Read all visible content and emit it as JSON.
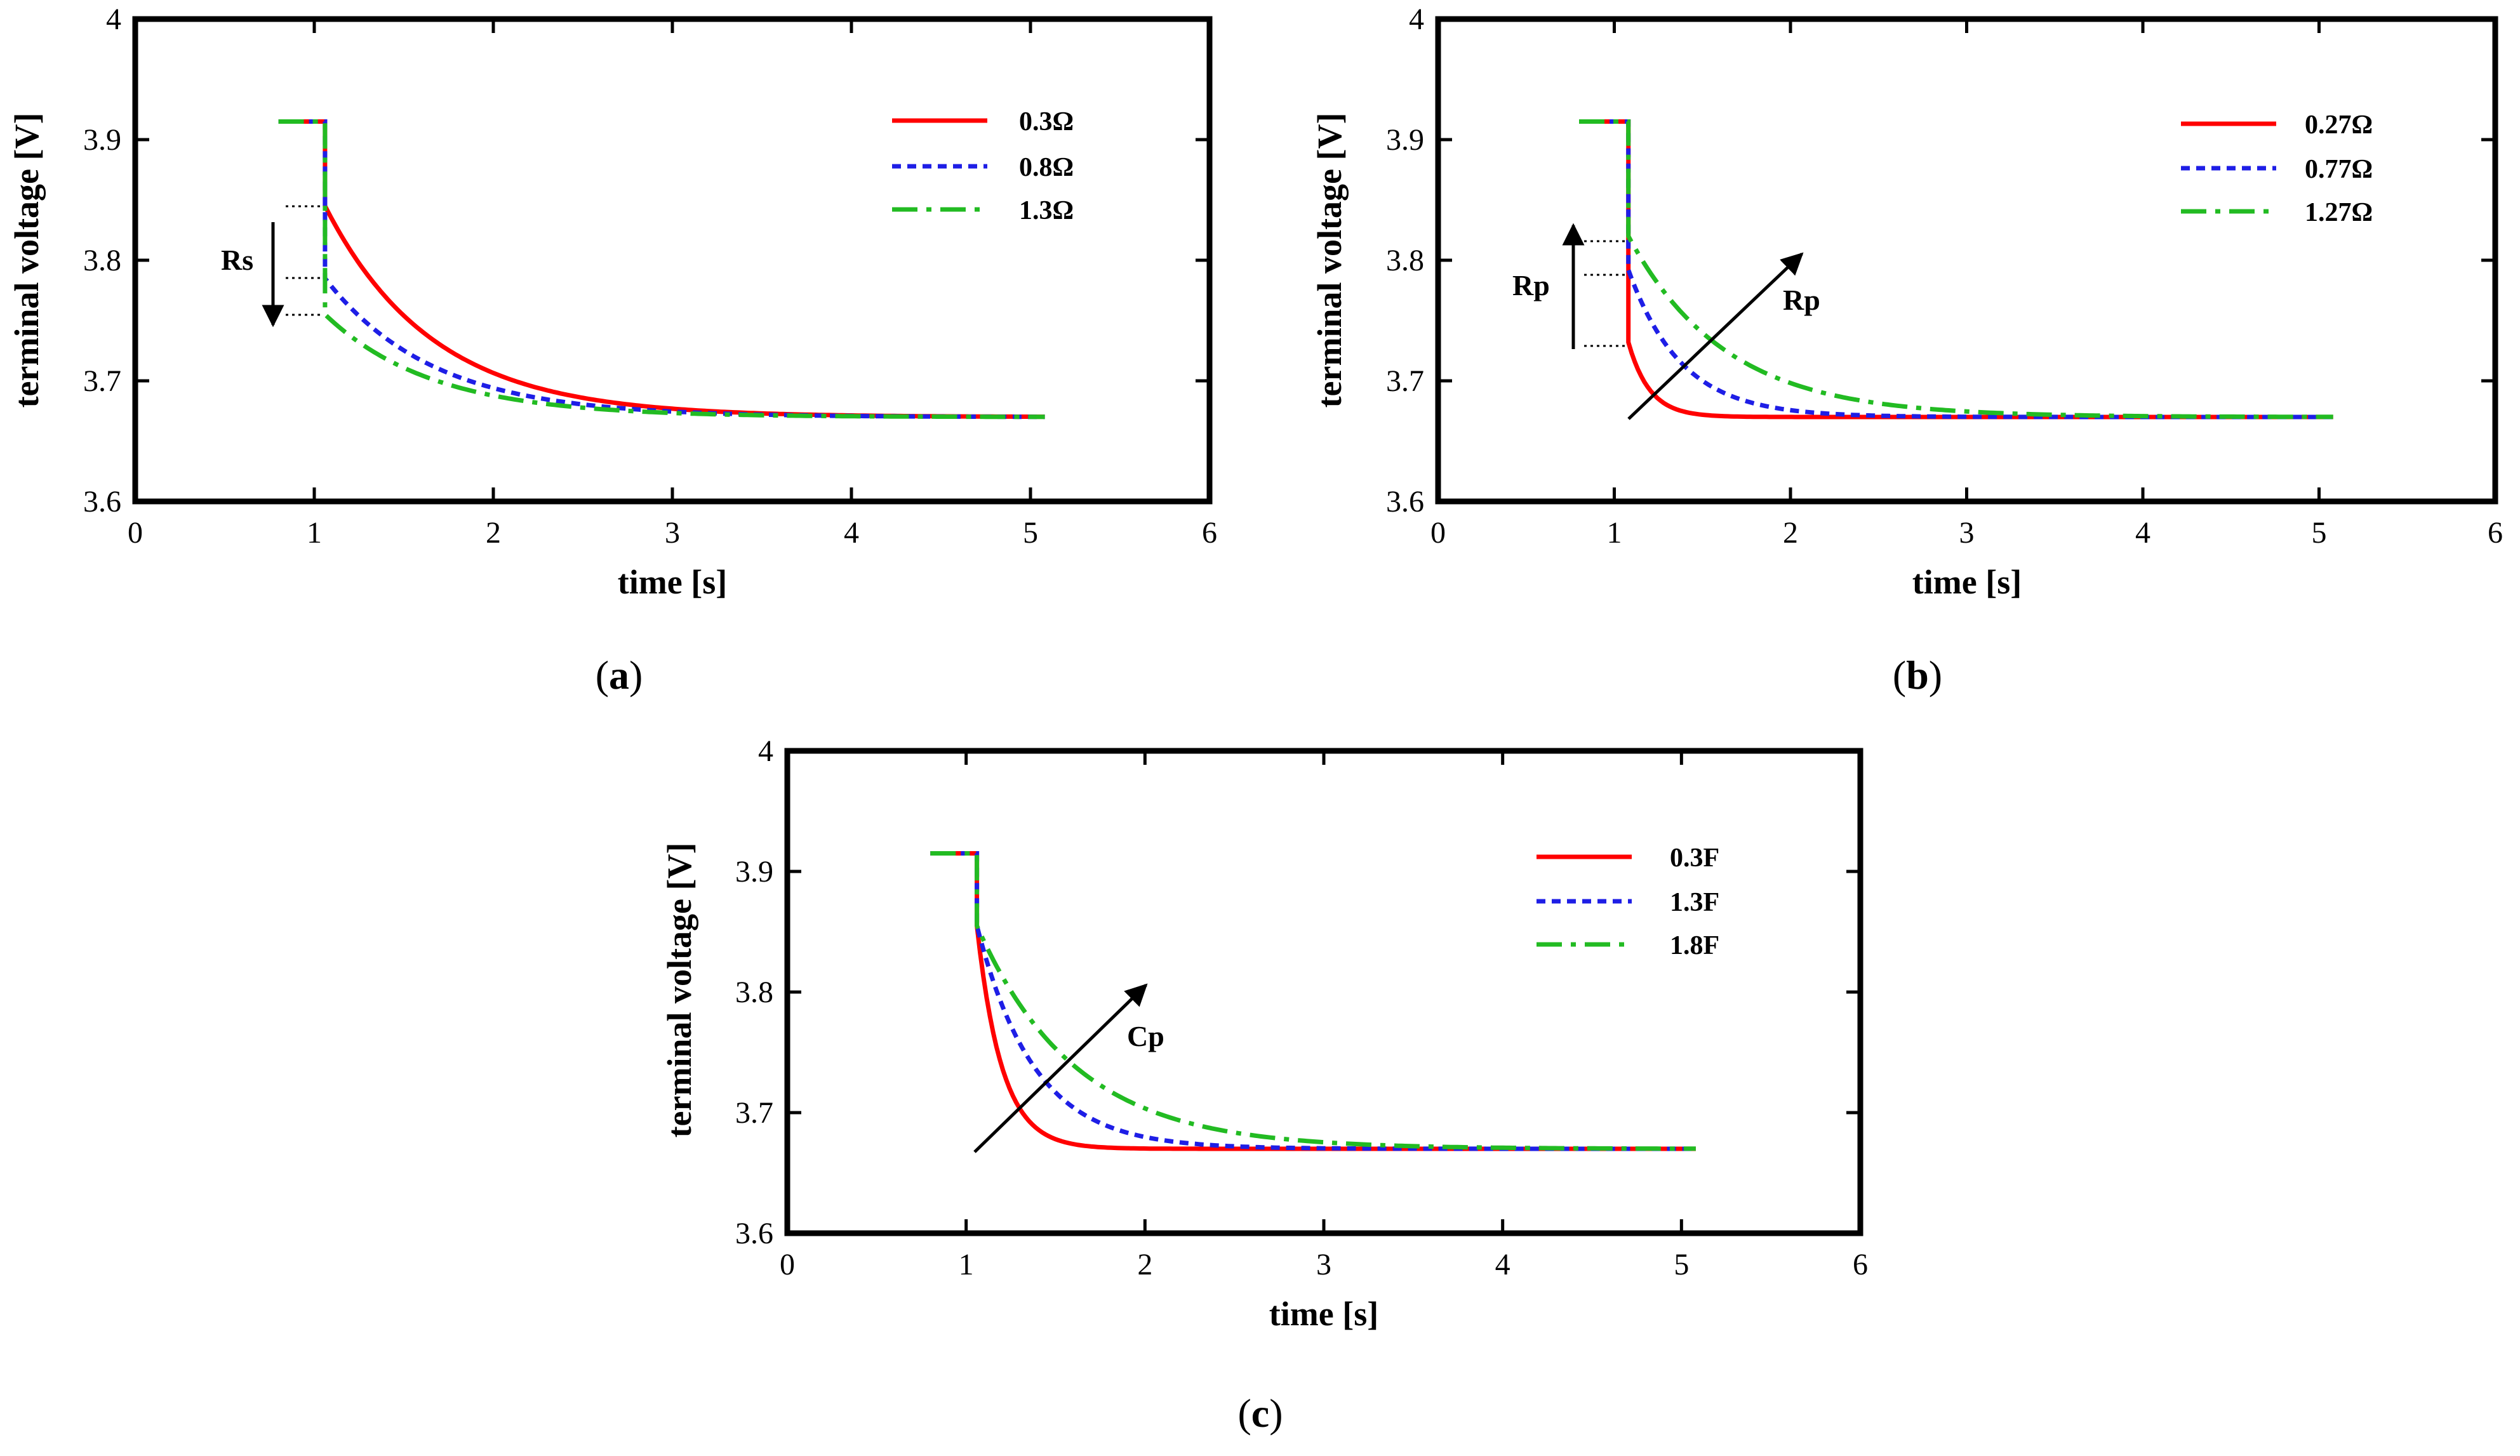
{
  "chart_data": [
    {
      "type": "line",
      "panel": "a",
      "caption_letter": "a",
      "xlabel": "time [s]",
      "ylabel": "terminal voltage [V]",
      "xlim": [
        0,
        6
      ],
      "ylim": [
        3.6,
        4.0
      ],
      "xticks": [
        "0",
        "1",
        "2",
        "3",
        "4",
        "5",
        "6"
      ],
      "yticks": [
        "3.6",
        "3.7",
        "3.8",
        "3.9",
        "4"
      ],
      "grid": false,
      "legend_position": "top-right",
      "annotations": [
        {
          "text": "Rs",
          "kind": "vertical-arrow-down"
        }
      ],
      "model": {
        "v0": 3.915,
        "vinf": 3.67,
        "t_step": 1.06,
        "t_start": 0.8,
        "t_end": 5.08
      },
      "series": [
        {
          "name": "0.3Ω",
          "style": "solid",
          "color": "#ff0000",
          "jump_to": 3.845,
          "tau": 0.6
        },
        {
          "name": "0.8Ω",
          "style": "dotted",
          "color": "#1e1ee6",
          "jump_to": 3.785,
          "tau": 0.6
        },
        {
          "name": "1.3Ω",
          "style": "dashdot",
          "color": "#22bb22",
          "jump_to": 3.755,
          "tau": 0.6
        }
      ]
    },
    {
      "type": "line",
      "panel": "b",
      "caption_letter": "b",
      "xlabel": "time [s]",
      "ylabel": "terminal voltage [V]",
      "xlim": [
        0,
        6
      ],
      "ylim": [
        3.6,
        4.0
      ],
      "xticks": [
        "0",
        "1",
        "2",
        "3",
        "4",
        "5",
        "6"
      ],
      "yticks": [
        "3.6",
        "3.7",
        "3.8",
        "3.9",
        "4"
      ],
      "grid": false,
      "legend_position": "top-right",
      "annotations": [
        {
          "text": "Rp",
          "kind": "vertical-arrow-up"
        },
        {
          "text": "Rp",
          "kind": "diagonal-arrow"
        }
      ],
      "model": {
        "v0": 3.915,
        "vinf": 3.67,
        "t_step": 1.08,
        "t_start": 0.8,
        "t_end": 5.08
      },
      "series": [
        {
          "name": "0.27Ω",
          "style": "solid",
          "color": "#ff0000",
          "jump_to": 3.732,
          "tau": 0.12
        },
        {
          "name": "0.77Ω",
          "style": "dotted",
          "color": "#1e1ee6",
          "jump_to": 3.792,
          "tau": 0.3
        },
        {
          "name": "1.27Ω",
          "style": "dashdot",
          "color": "#22bb22",
          "jump_to": 3.82,
          "tau": 0.55
        }
      ]
    },
    {
      "type": "line",
      "panel": "c",
      "caption_letter": "c",
      "xlabel": "time [s]",
      "ylabel": "terminal voltage [V]",
      "xlim": [
        0,
        6
      ],
      "ylim": [
        3.6,
        4.0
      ],
      "xticks": [
        "0",
        "1",
        "2",
        "3",
        "4",
        "5",
        "6"
      ],
      "yticks": [
        "3.6",
        "3.7",
        "3.8",
        "3.9",
        "4"
      ],
      "grid": false,
      "legend_position": "top-right",
      "annotations": [
        {
          "text": "Cp",
          "kind": "diagonal-arrow"
        }
      ],
      "model": {
        "v0": 3.915,
        "vinf": 3.67,
        "t_step": 1.06,
        "t_start": 0.8,
        "t_end": 5.08
      },
      "series": [
        {
          "name": "0.3F",
          "style": "solid",
          "color": "#ff0000",
          "jump_to": 3.855,
          "tau": 0.14
        },
        {
          "name": "1.3F",
          "style": "dotted",
          "color": "#1e1ee6",
          "jump_to": 3.855,
          "tau": 0.32
        },
        {
          "name": "1.8F",
          "style": "dashdot",
          "color": "#22bb22",
          "jump_to": 3.855,
          "tau": 0.55
        }
      ]
    }
  ]
}
